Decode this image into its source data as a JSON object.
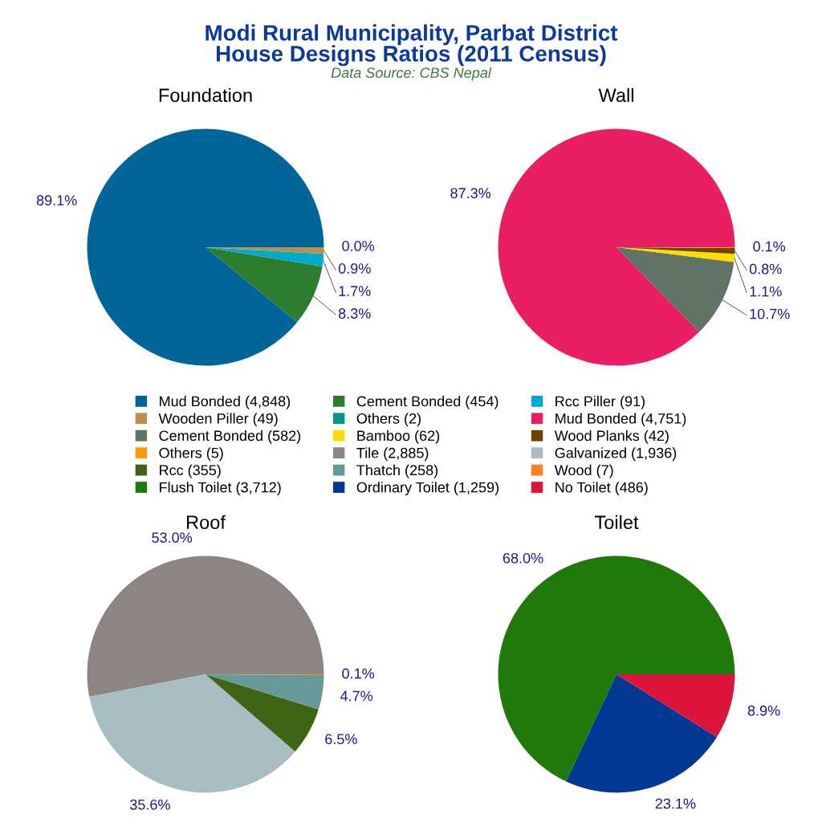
{
  "chart_data": [
    {
      "type": "pie",
      "title": "Modi Rural Municipality, Parbat District\nHouse Designs Ratios (2011 Census)",
      "subtitle": "Data Source: CBS Nepal",
      "xlabel": "Foundation",
      "legend": "center",
      "categories": [
        "Mud Bonded (4,848)",
        "Cement Bonded (454)",
        "Rcc Piller (91)",
        "Wooden Piller (49)",
        "Others (2)"
      ],
      "values": [
        89.1,
        8.3,
        1.7,
        0.9,
        0.0
      ],
      "value_labels": [
        "89.1%",
        "8.3%",
        "1.7%",
        "0.9%",
        "0.0%"
      ],
      "colors": [
        "#006699",
        "#2e7d2e",
        "#00aacc",
        "#b8904f",
        "#009988"
      ]
    },
    {
      "type": "pie",
      "xlabel": "Wall",
      "legend": "center",
      "categories": [
        "Mud Bonded (4,751)",
        "Cement Bonded (582)",
        "Bamboo (62)",
        "Wood Planks (42)",
        "Others (5)"
      ],
      "values": [
        87.3,
        10.7,
        1.1,
        0.8,
        0.1
      ],
      "value_labels": [
        "87.3%",
        "10.7%",
        "1.1%",
        "0.8%",
        "0.1%"
      ],
      "colors": [
        "#e91e63",
        "#607466",
        "#ffdd00",
        "#6b4500",
        "#ff9900"
      ]
    },
    {
      "type": "pie",
      "xlabel": "Roof",
      "legend": "center",
      "categories": [
        "Tile (2,885)",
        "Galvanized (1,936)",
        "Rcc (355)",
        "Thatch (258)",
        "Wood (7)"
      ],
      "values": [
        53.0,
        35.6,
        6.5,
        4.7,
        0.1
      ],
      "value_labels": [
        "53.0%",
        "35.6%",
        "6.5%",
        "4.7%",
        "0.1%"
      ],
      "colors": [
        "#8c8581",
        "#a8bcc4",
        "#3f6415",
        "#669999",
        "#ff8020"
      ]
    },
    {
      "type": "pie",
      "xlabel": "Toilet",
      "legend": "center",
      "categories": [
        "Flush Toilet (3,712)",
        "Ordinary Toilet (1,259)",
        "No Toilet (486)"
      ],
      "values": [
        68.0,
        23.1,
        8.9
      ],
      "value_labels": [
        "68.0%",
        "23.1%",
        "8.9%"
      ],
      "colors": [
        "#1f7a0a",
        "#003893",
        "#dc143c"
      ]
    }
  ]
}
